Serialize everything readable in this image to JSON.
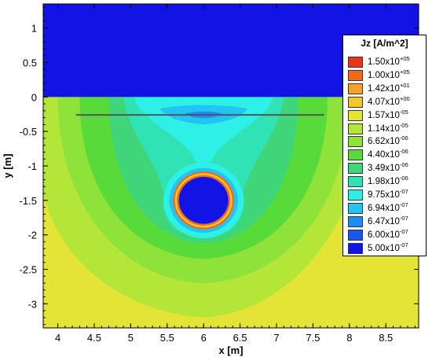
{
  "chart_data": {
    "type": "heatmap",
    "title": "",
    "xlabel": "x [m]",
    "ylabel": "y [m]",
    "xlim": [
      3.8,
      8.95
    ],
    "ylim": [
      -3.35,
      1.35
    ],
    "x_ticks": [
      "4",
      "4.5",
      "5",
      "5.5",
      "6",
      "6.5",
      "7",
      "7.5",
      "8",
      "8.5"
    ],
    "y_ticks": [
      "1",
      "0.5",
      "0",
      "-0.5",
      "-1",
      "-1.5",
      "-2",
      "-2.5",
      "-3"
    ],
    "legend": {
      "title": "Jz [A/m^2]",
      "placement": "right",
      "levels": [
        {
          "base": "1.50x10",
          "exp": "+05",
          "color": "#e8361c"
        },
        {
          "base": "1.00x10",
          "exp": "+05",
          "color": "#f06a1e"
        },
        {
          "base": "1.42x10",
          "exp": "+01",
          "color": "#f7a228"
        },
        {
          "base": "4.07x10",
          "exp": "+00",
          "color": "#f0c82c"
        },
        {
          "base": "1.57x10",
          "exp": "-05",
          "color": "#e4e436"
        },
        {
          "base": "1.14x10",
          "exp": "-05",
          "color": "#b4e63a"
        },
        {
          "base": "6.62x10",
          "exp": "-06",
          "color": "#8ee23a"
        },
        {
          "base": "4.40x10",
          "exp": "-06",
          "color": "#58da3a"
        },
        {
          "base": "3.49x10",
          "exp": "-06",
          "color": "#3ed678"
        },
        {
          "base": "1.98x10",
          "exp": "-06",
          "color": "#30e2b4"
        },
        {
          "base": "9.75x10",
          "exp": "-07",
          "color": "#2ef0e6"
        },
        {
          "base": "6.94x10",
          "exp": "-07",
          "color": "#22c4f4"
        },
        {
          "base": "6.47x10",
          "exp": "-07",
          "color": "#1e8cf2"
        },
        {
          "base": "6.00x10",
          "exp": "-07",
          "color": "#1a56ee"
        },
        {
          "base": "5.00x10",
          "exp": "-07",
          "color": "#1214e6"
        }
      ]
    },
    "features": {
      "air_region_y_min": 0,
      "conductor_line": {
        "x": [
          4.25,
          7.65
        ],
        "y": -0.26
      },
      "pipe": {
        "center_x": 6.0,
        "center_y": -1.5,
        "outer_radius": 0.42,
        "inner_radius": 0.34
      }
    }
  }
}
